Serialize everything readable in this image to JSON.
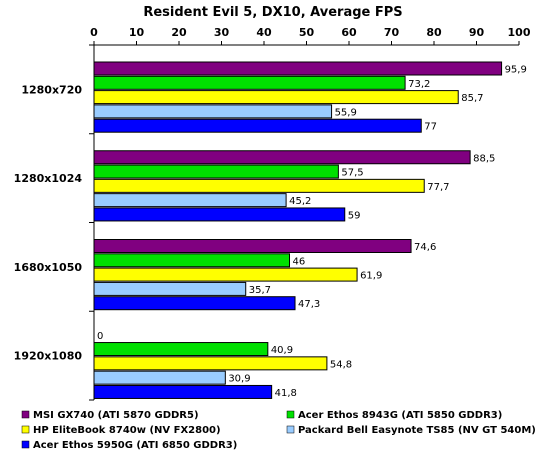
{
  "chart_data": {
    "type": "bar",
    "orientation": "horizontal",
    "title": "Resident Evil 5, DX10, Average FPS",
    "xlim": [
      0,
      100
    ],
    "ticks": [
      0,
      10,
      20,
      30,
      40,
      50,
      60,
      70,
      80,
      90,
      100
    ],
    "tick_position": "top",
    "grid": false,
    "legend_position": "bottom",
    "categories": [
      "1280x720",
      "1280x1024",
      "1680x1050",
      "1920x1080"
    ],
    "series": [
      {
        "name": "MSI GX740 (ATI 5870 GDDR5)",
        "color": "#800080",
        "values": [
          95.9,
          88.5,
          74.6,
          0
        ],
        "labels": [
          "95,9",
          "88,5",
          "74,6",
          "0"
        ]
      },
      {
        "name": "Acer Ethos 8943G (ATI 5850 GDDR3)",
        "color": "#00e000",
        "values": [
          73.2,
          57.5,
          46,
          40.9
        ],
        "labels": [
          "73,2",
          "57,5",
          "46",
          "40,9"
        ]
      },
      {
        "name": "HP EliteBook 8740w (NV FX2800)",
        "color": "#ffff00",
        "values": [
          85.7,
          77.7,
          61.9,
          54.8
        ],
        "labels": [
          "85,7",
          "77,7",
          "61,9",
          "54,8"
        ]
      },
      {
        "name": "Packard Bell Easynote TS85 (NV GT 540M)",
        "color": "#99ccff",
        "values": [
          55.9,
          45.2,
          35.7,
          30.9
        ],
        "labels": [
          "55,9",
          "45,2",
          "35,7",
          "30,9"
        ]
      },
      {
        "name": "Acer Ethos 5950G (ATI 6850 GDDR3)",
        "color": "#0000ff",
        "values": [
          77,
          59,
          47.3,
          41.8
        ],
        "labels": [
          "77",
          "59",
          "47,3",
          "41,8"
        ]
      }
    ]
  }
}
